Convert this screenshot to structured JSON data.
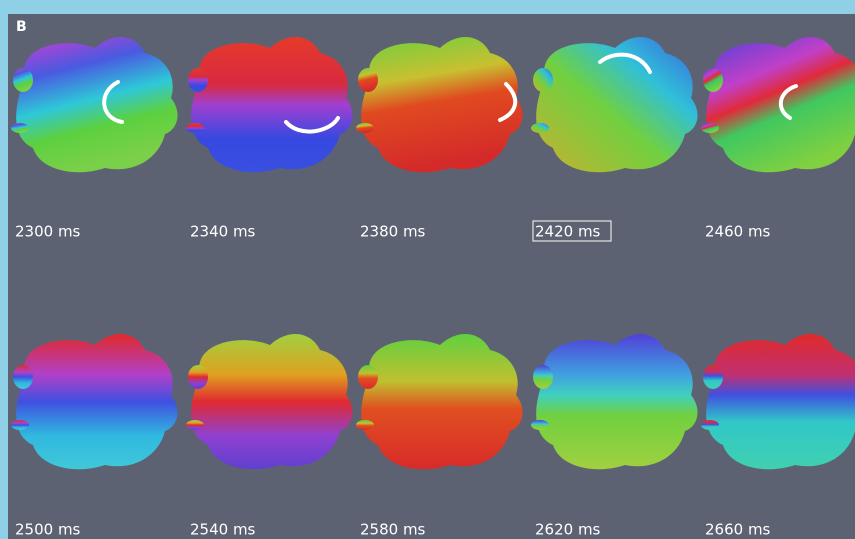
{
  "panel_label": "B",
  "frames": [
    "2300 ms",
    "2340 ms",
    "2380 ms",
    "2420 ms",
    "2460 ms",
    "2500 ms",
    "2540 ms",
    "2580 ms",
    "2620 ms",
    "2660 ms"
  ]
}
